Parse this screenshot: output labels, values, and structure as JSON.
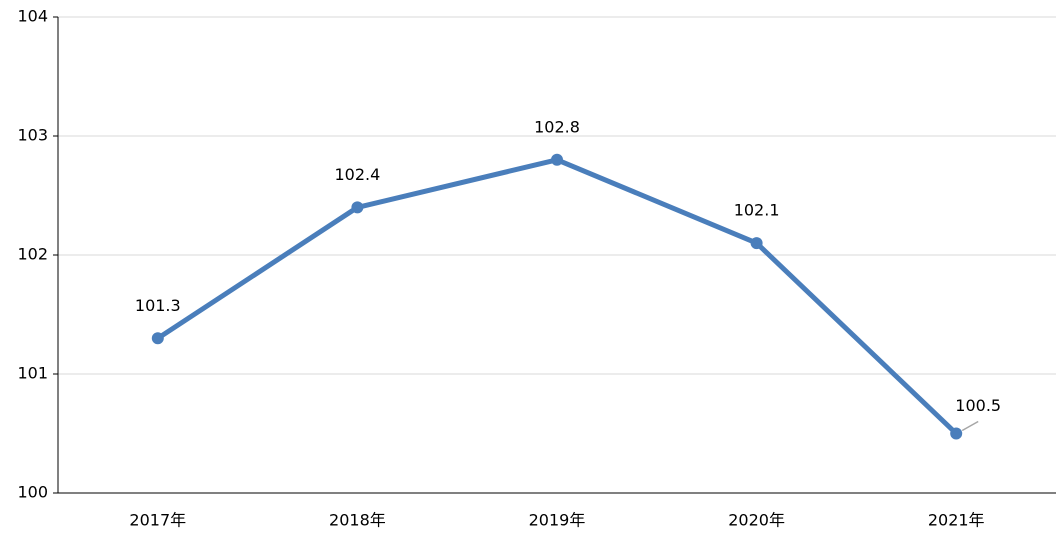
{
  "chart_data": {
    "type": "line",
    "categories": [
      "2017年",
      "2018年",
      "2019年",
      "2020年",
      "2021年"
    ],
    "series": [
      {
        "color": "#4a7ebb",
        "values": [
          101.3,
          102.4,
          102.8,
          102.1,
          100.5
        ]
      }
    ],
    "ylim": [
      100,
      104
    ],
    "yticks": [
      100,
      101,
      102,
      103,
      104
    ],
    "grid": true
  }
}
